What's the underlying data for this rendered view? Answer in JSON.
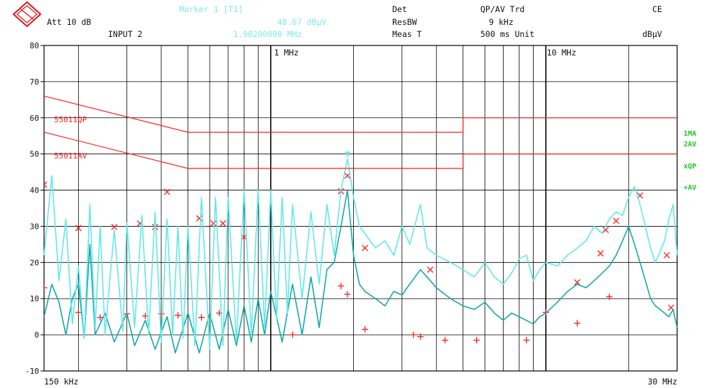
{
  "header": {
    "att": "Att 10 dB",
    "input": "INPUT 2",
    "marker_title": "Marker 1 [T1]",
    "marker_level": "48.67 dBµV",
    "marker_freq": "1.90200000 MHz",
    "det_label": "Det",
    "det_value": "QP/AV Trd",
    "resbw_label": "ResBW",
    "resbw_value": "9 kHz",
    "meas_label": "Meas T",
    "meas_value": "500 ms Unit",
    "standard": "CE",
    "unit": "dBµV"
  },
  "side_labels": [
    "1MA",
    "2AV",
    "xQP",
    "+AV"
  ],
  "limit_labels": [
    "55011QP",
    "55011AV"
  ],
  "colors": {
    "trace_main": "#62e8e8",
    "trace_av": "#16a9a9",
    "limit": "#ff2020",
    "marker": "#ff1a1a",
    "grid": "#000000",
    "side_label": "#22c622",
    "header_value": "#7fe8e8"
  },
  "chart_data": {
    "type": "line",
    "title": "",
    "xlabel": "",
    "ylabel": "dBµV",
    "x_scale": "log",
    "xlim": [
      0.15,
      30
    ],
    "ylim": [
      -10,
      80
    ],
    "y_ticks": [
      80,
      70,
      60,
      50,
      40,
      30,
      20,
      10,
      0,
      -10
    ],
    "x_tick_labels": [
      {
        "x": 0.15,
        "text": "150 kHz"
      },
      {
        "x": 1,
        "text": "1 MHz"
      },
      {
        "x": 10,
        "text": "10 MHz"
      },
      {
        "x": 30,
        "text": "30 MHz"
      }
    ],
    "limit_lines": [
      {
        "name": "55011QP",
        "points": [
          [
            0.15,
            66
          ],
          [
            0.5,
            56
          ],
          [
            5,
            56
          ],
          [
            5,
            60
          ],
          [
            30,
            60
          ]
        ]
      },
      {
        "name": "55011AV",
        "points": [
          [
            0.15,
            56
          ],
          [
            0.5,
            46
          ],
          [
            5,
            46
          ],
          [
            5,
            50
          ],
          [
            30,
            50
          ]
        ]
      }
    ],
    "series": [
      {
        "name": "1MA",
        "points": [
          [
            0.15,
            22
          ],
          [
            0.16,
            44
          ],
          [
            0.17,
            15
          ],
          [
            0.18,
            32
          ],
          [
            0.19,
            3
          ],
          [
            0.2,
            19
          ],
          [
            0.21,
            -1
          ],
          [
            0.22,
            36
          ],
          [
            0.23,
            2
          ],
          [
            0.24,
            30
          ],
          [
            0.25,
            0
          ],
          [
            0.27,
            29
          ],
          [
            0.29,
            1
          ],
          [
            0.3,
            31
          ],
          [
            0.32,
            2
          ],
          [
            0.34,
            33
          ],
          [
            0.36,
            0
          ],
          [
            0.38,
            34
          ],
          [
            0.4,
            -2
          ],
          [
            0.42,
            32
          ],
          [
            0.44,
            0
          ],
          [
            0.46,
            30
          ],
          [
            0.48,
            -1
          ],
          [
            0.5,
            30
          ],
          [
            0.53,
            -3
          ],
          [
            0.56,
            38
          ],
          [
            0.6,
            -4
          ],
          [
            0.63,
            38
          ],
          [
            0.67,
            -3
          ],
          [
            0.7,
            38
          ],
          [
            0.75,
            -2
          ],
          [
            0.8,
            40
          ],
          [
            0.85,
            0
          ],
          [
            0.9,
            40
          ],
          [
            0.95,
            2
          ],
          [
            1.0,
            40
          ],
          [
            1.05,
            4
          ],
          [
            1.1,
            38
          ],
          [
            1.15,
            6
          ],
          [
            1.2,
            36
          ],
          [
            1.3,
            10
          ],
          [
            1.4,
            34
          ],
          [
            1.5,
            14
          ],
          [
            1.6,
            36
          ],
          [
            1.7,
            22
          ],
          [
            1.8,
            40
          ],
          [
            1.9,
            48.7
          ],
          [
            2.0,
            38
          ],
          [
            2.1,
            30
          ],
          [
            2.2,
            28
          ],
          [
            2.4,
            24
          ],
          [
            2.6,
            26
          ],
          [
            2.8,
            22
          ],
          [
            3.0,
            30
          ],
          [
            3.2,
            25
          ],
          [
            3.5,
            36
          ],
          [
            3.7,
            24
          ],
          [
            4.0,
            22
          ],
          [
            4.5,
            20
          ],
          [
            5.0,
            18
          ],
          [
            5.5,
            16
          ],
          [
            6.0,
            20
          ],
          [
            6.5,
            16
          ],
          [
            7.0,
            14
          ],
          [
            7.5,
            17
          ],
          [
            8.0,
            21
          ],
          [
            8.5,
            22
          ],
          [
            9.0,
            15
          ],
          [
            9.5,
            18
          ],
          [
            10.0,
            20
          ],
          [
            11.0,
            19
          ],
          [
            12.0,
            22
          ],
          [
            13.0,
            24
          ],
          [
            14.0,
            26
          ],
          [
            15.0,
            30
          ],
          [
            16.0,
            28
          ],
          [
            17.0,
            32
          ],
          [
            18.0,
            34
          ],
          [
            19.0,
            33
          ],
          [
            20.0,
            38
          ],
          [
            21.0,
            41
          ],
          [
            22.0,
            36
          ],
          [
            23.0,
            30
          ],
          [
            24.0,
            24
          ],
          [
            25.0,
            20
          ],
          [
            26.0,
            23
          ],
          [
            27.0,
            26
          ],
          [
            28.0,
            32
          ],
          [
            29.0,
            36
          ],
          [
            30.0,
            22
          ]
        ]
      },
      {
        "name": "2AV",
        "points": [
          [
            0.15,
            5
          ],
          [
            0.16,
            14
          ],
          [
            0.17,
            9
          ],
          [
            0.18,
            0
          ],
          [
            0.19,
            10
          ],
          [
            0.2,
            14
          ],
          [
            0.21,
            -1
          ],
          [
            0.22,
            25
          ],
          [
            0.23,
            0
          ],
          [
            0.25,
            6
          ],
          [
            0.27,
            -2
          ],
          [
            0.3,
            6
          ],
          [
            0.32,
            -3
          ],
          [
            0.35,
            4
          ],
          [
            0.38,
            -4
          ],
          [
            0.42,
            5
          ],
          [
            0.45,
            -5
          ],
          [
            0.5,
            6
          ],
          [
            0.55,
            -5
          ],
          [
            0.6,
            6
          ],
          [
            0.65,
            -4
          ],
          [
            0.7,
            7
          ],
          [
            0.75,
            -3
          ],
          [
            0.8,
            8
          ],
          [
            0.85,
            -2
          ],
          [
            0.9,
            10
          ],
          [
            0.95,
            0
          ],
          [
            1.0,
            12
          ],
          [
            1.1,
            -2
          ],
          [
            1.2,
            14
          ],
          [
            1.3,
            0
          ],
          [
            1.4,
            16
          ],
          [
            1.5,
            2
          ],
          [
            1.6,
            18
          ],
          [
            1.7,
            20
          ],
          [
            1.8,
            30
          ],
          [
            1.9,
            40
          ],
          [
            2.0,
            22
          ],
          [
            2.1,
            14
          ],
          [
            2.2,
            12
          ],
          [
            2.4,
            10
          ],
          [
            2.6,
            8
          ],
          [
            2.8,
            12
          ],
          [
            3.0,
            11
          ],
          [
            3.2,
            14
          ],
          [
            3.5,
            18
          ],
          [
            3.8,
            15
          ],
          [
            4.0,
            13
          ],
          [
            4.5,
            10
          ],
          [
            5.0,
            8
          ],
          [
            5.5,
            7
          ],
          [
            6.0,
            9
          ],
          [
            6.5,
            6
          ],
          [
            7.0,
            4
          ],
          [
            7.5,
            6
          ],
          [
            8.0,
            5
          ],
          [
            8.5,
            4
          ],
          [
            9.0,
            3
          ],
          [
            9.5,
            5
          ],
          [
            10.0,
            6
          ],
          [
            11.0,
            9
          ],
          [
            12.0,
            12
          ],
          [
            13.0,
            14
          ],
          [
            14.0,
            13
          ],
          [
            15.0,
            15
          ],
          [
            16.0,
            17
          ],
          [
            17.0,
            19
          ],
          [
            18.0,
            22
          ],
          [
            19.0,
            26
          ],
          [
            20.0,
            30
          ],
          [
            21.0,
            25
          ],
          [
            22.0,
            20
          ],
          [
            23.0,
            15
          ],
          [
            24.0,
            10
          ],
          [
            25.0,
            8
          ],
          [
            26.0,
            7
          ],
          [
            27.0,
            6
          ],
          [
            28.0,
            5
          ],
          [
            29.0,
            7
          ],
          [
            30.0,
            2
          ]
        ]
      }
    ],
    "qp_markers": [
      [
        0.15,
        41.5
      ],
      [
        0.2,
        29.5
      ],
      [
        0.27,
        29.8
      ],
      [
        0.335,
        30.8
      ],
      [
        0.38,
        29.8
      ],
      [
        0.42,
        39.5
      ],
      [
        0.55,
        32.2
      ],
      [
        0.62,
        30.8
      ],
      [
        0.67,
        30.8
      ],
      [
        0.8,
        27
      ],
      [
        1.8,
        39.7
      ],
      [
        1.9,
        44
      ],
      [
        2.2,
        24
      ],
      [
        3.8,
        18
      ],
      [
        13.0,
        14.5
      ],
      [
        15.8,
        22.5
      ],
      [
        16.5,
        29
      ],
      [
        18.0,
        31.5
      ],
      [
        22.0,
        38.5
      ],
      [
        27.5,
        22
      ],
      [
        28.5,
        7.5
      ]
    ],
    "av_markers": [
      [
        0.15,
        13
      ],
      [
        0.2,
        6.2
      ],
      [
        0.24,
        4.8
      ],
      [
        0.3,
        5.8
      ],
      [
        0.35,
        5.2
      ],
      [
        0.4,
        5.8
      ],
      [
        0.46,
        5.4
      ],
      [
        0.56,
        4.8
      ],
      [
        0.65,
        6
      ],
      [
        1.2,
        0
      ],
      [
        1.8,
        13.5
      ],
      [
        1.9,
        11.2
      ],
      [
        2.2,
        1.5
      ],
      [
        3.3,
        0
      ],
      [
        3.5,
        -0.5
      ],
      [
        4.3,
        -1.5
      ],
      [
        5.6,
        -1.5
      ],
      [
        8.5,
        -1.5
      ],
      [
        10.0,
        6.2
      ],
      [
        13.0,
        3.2
      ],
      [
        17.0,
        10.5
      ]
    ]
  }
}
